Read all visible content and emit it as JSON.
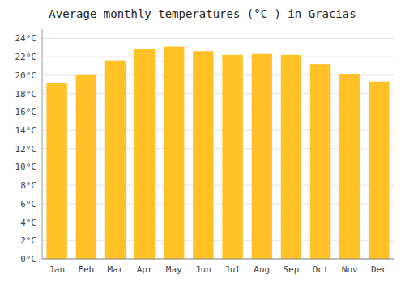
{
  "chart_data": {
    "type": "bar",
    "title": "Average monthly temperatures (°C ) in Gracias",
    "categories": [
      "Jan",
      "Feb",
      "Mar",
      "Apr",
      "May",
      "Jun",
      "Jul",
      "Aug",
      "Sep",
      "Oct",
      "Nov",
      "Dec"
    ],
    "values": [
      19.1,
      20.0,
      21.6,
      22.8,
      23.1,
      22.6,
      22.2,
      22.3,
      22.2,
      21.2,
      20.1,
      19.3
    ],
    "color": "#FFC125",
    "ylim": [
      0,
      25
    ],
    "yticks": [
      {
        "value": 0,
        "label": "0°C"
      },
      {
        "value": 2,
        "label": "2°C"
      },
      {
        "value": 4,
        "label": "4°C"
      },
      {
        "value": 6,
        "label": "6°C"
      },
      {
        "value": 8,
        "label": "8°C"
      },
      {
        "value": 10,
        "label": "10°C"
      },
      {
        "value": 12,
        "label": "12°C"
      },
      {
        "value": 14,
        "label": "14°C"
      },
      {
        "value": 16,
        "label": "16°C"
      },
      {
        "value": 18,
        "label": "18°C"
      },
      {
        "value": 20,
        "label": "20°C"
      },
      {
        "value": 22,
        "label": "22°C"
      },
      {
        "value": 24,
        "label": "24°C"
      }
    ],
    "grid": true
  }
}
